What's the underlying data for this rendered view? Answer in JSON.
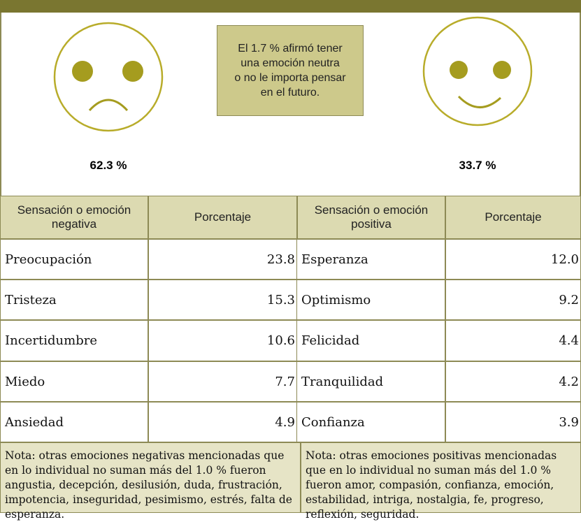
{
  "faces": {
    "negative": "62.3 %",
    "positive": "33.7 %",
    "neutral_note": [
      "El 1.7 % afirmó tener",
      "una emoción neutra",
      "o no le importa pensar",
      "en el futuro."
    ]
  },
  "table": {
    "headers": [
      "Sensación o emoción negativa",
      "Porcentaje",
      "Sensación o emoción positiva",
      "Porcentaje"
    ],
    "rows": [
      [
        "Preocupación",
        "23.8",
        "Esperanza",
        "12.0"
      ],
      [
        "Tristeza",
        "15.3",
        "Optimismo",
        "9.2"
      ],
      [
        "Incertidumbre",
        "10.6",
        "Felicidad",
        "4.4"
      ],
      [
        "Miedo",
        "7.7",
        "Tranquilidad",
        "4.2"
      ],
      [
        "Ansiedad",
        "4.9",
        "Confianza",
        "3.9"
      ]
    ],
    "notes": [
      "Nota: otras emociones negativas mencionadas que en lo individual no suman más del 1.0 % fueron angustia, decepción, desilusión, duda, frustración, impotencia, inseguridad, pesimismo, estrés, falta de esperanza.",
      "Nota: otras emociones positivas mencionadas que en lo individual no suman más del 1.0 % fueron amor, compasión, confianza, emoción, estabilidad, intriga, nostalgia, fe, progreso, reflexión, seguridad."
    ]
  }
}
